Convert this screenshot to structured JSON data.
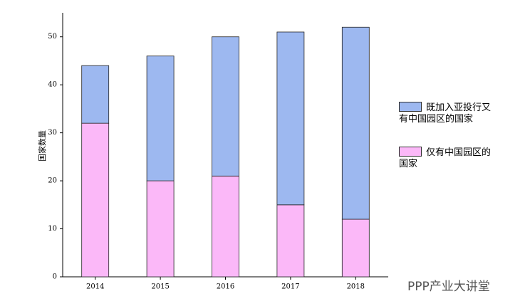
{
  "chart_data": {
    "type": "stacked-bar",
    "y_label": "国家数量",
    "categories": [
      "2014",
      "2015",
      "2016",
      "2017",
      "2018"
    ],
    "series": [
      {
        "name": "仅有中国园区的国家",
        "color": "#fbb8f8",
        "values": [
          32,
          20,
          21,
          15,
          12
        ]
      },
      {
        "name": "既加入亚投行又有中国园区的国家",
        "color": "#9db8f0",
        "values": [
          12,
          26,
          29,
          36,
          40
        ]
      }
    ],
    "ylim": [
      0,
      55
    ],
    "yticks": [
      0,
      10,
      20,
      30,
      40,
      50
    ]
  },
  "watermark": "PPP产业大讲堂"
}
